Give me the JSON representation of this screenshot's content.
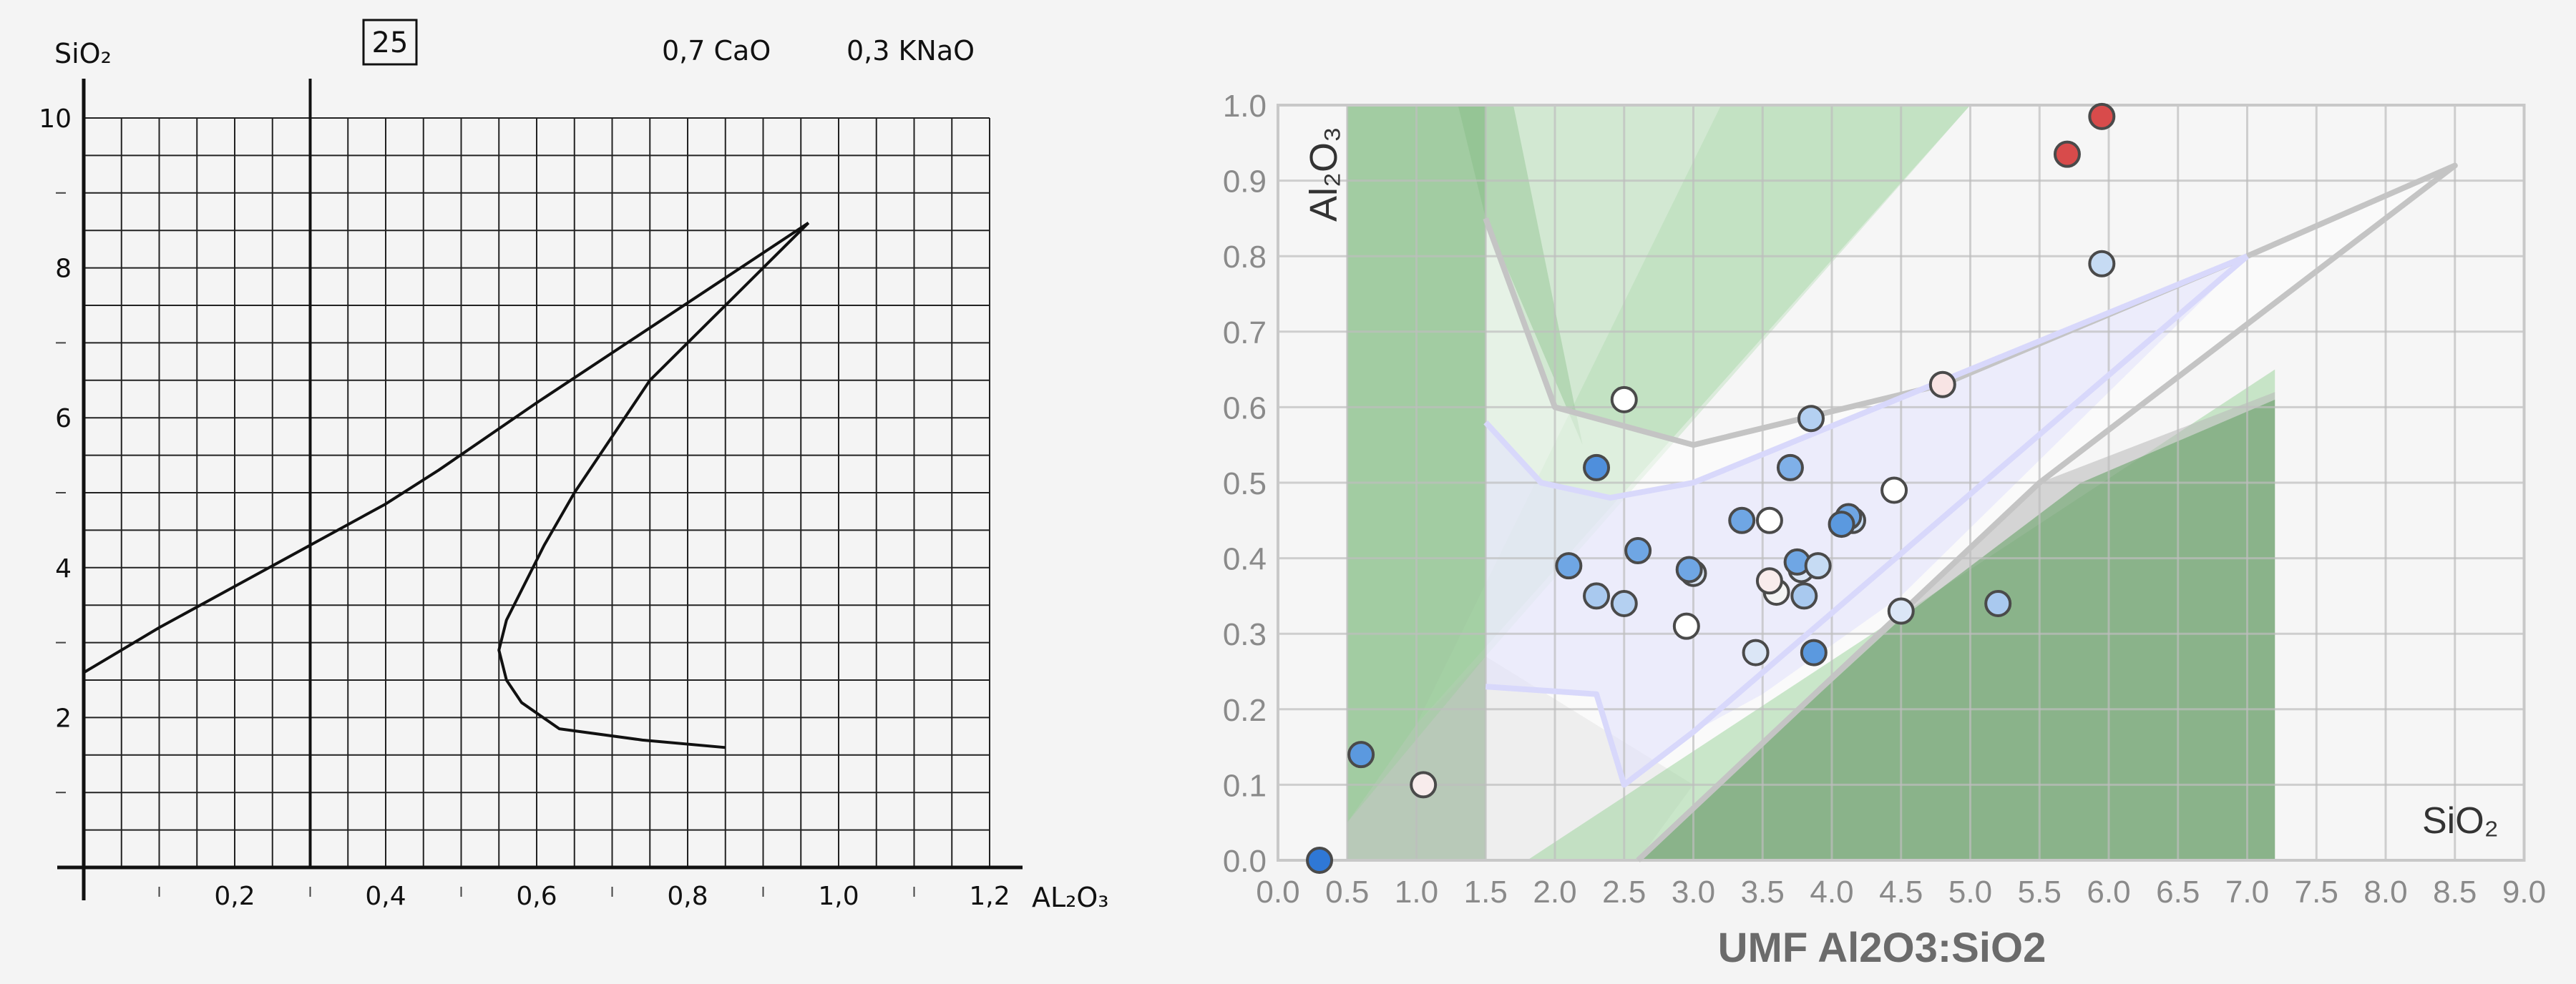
{
  "chart_data": [
    {
      "type": "line",
      "panel": "left",
      "title": "",
      "box_label": "25",
      "annotations": [
        "0,7 CaO",
        "0,3 KNaO"
      ],
      "xlabel": "AL₂O₃",
      "ylabel": "SiO₂",
      "xlim": [
        0,
        1.2
      ],
      "ylim": [
        0,
        10
      ],
      "x_ticks": [
        "0,2",
        "0,4",
        "0,6",
        "0,8",
        "1,0",
        "1,2"
      ],
      "x_tick_values": [
        0.2,
        0.4,
        0.6,
        0.8,
        1.0,
        1.2
      ],
      "y_ticks": [
        "2",
        "4",
        "6",
        "8",
        "10"
      ],
      "y_tick_values": [
        2,
        4,
        6,
        8,
        10
      ],
      "grid": true,
      "reference_line_x": 0.3,
      "series": [
        {
          "x": [
            0,
            0.1,
            0.2,
            0.3,
            0.4,
            0.47,
            0.6,
            0.75,
            0.96
          ],
          "y": [
            2.6,
            3.2,
            3.75,
            4.3,
            4.85,
            5.3,
            6.2,
            7.2,
            8.6
          ]
        },
        {
          "x": [
            0.96,
            0.9,
            0.83,
            0.75,
            0.69,
            0.65,
            0.61,
            0.58,
            0.56,
            0.55,
            0.56,
            0.58,
            0.63,
            0.74,
            0.85
          ],
          "y": [
            8.6,
            8.0,
            7.3,
            6.5,
            5.6,
            5.0,
            4.3,
            3.7,
            3.3,
            2.9,
            2.5,
            2.2,
            1.85,
            1.7,
            1.6
          ]
        }
      ]
    },
    {
      "type": "scatter",
      "panel": "right",
      "title": "",
      "xlabel": "UMF Al2O3:SiO2",
      "inner_labels": {
        "y": "Al₂O₃",
        "x": "SiO₂"
      },
      "xlim": [
        0,
        9
      ],
      "ylim": [
        0,
        1.0
      ],
      "x_ticks": [
        "0.0",
        "0.5",
        "1.0",
        "1.5",
        "2.0",
        "2.5",
        "3.0",
        "3.5",
        "4.0",
        "4.5",
        "5.0",
        "5.5",
        "6.0",
        "6.5",
        "7.0",
        "7.5",
        "8.0",
        "8.5",
        "9.0"
      ],
      "y_ticks": [
        "0.0",
        "0.1",
        "0.2",
        "0.3",
        "0.4",
        "0.5",
        "0.6",
        "0.7",
        "0.8",
        "0.9",
        "1.0"
      ],
      "grid": true,
      "regions": [
        {
          "fill": "#6fa86f",
          "opacity": 0.55,
          "points": [
            [
              0.5,
              0
            ],
            [
              1.5,
              0
            ],
            [
              1.5,
              1.0
            ],
            [
              0.5,
              1.0
            ]
          ]
        },
        {
          "fill": "#8fcf8f",
          "opacity": 0.35,
          "points": [
            [
              0.5,
              0.05
            ],
            [
              1.0,
              0.18
            ],
            [
              5.0,
              1.0
            ],
            [
              0.5,
              1.0
            ]
          ]
        },
        {
          "fill": "#a8d8a8",
          "opacity": 0.35,
          "points": [
            [
              1.0,
              0.18
            ],
            [
              1.5,
              0.27
            ],
            [
              5.0,
              1.0
            ],
            [
              3.2,
              1.0
            ]
          ]
        },
        {
          "fill": "#7fb87f",
          "opacity": 0.35,
          "points": [
            [
              1.3,
              1.0
            ],
            [
              1.7,
              1.0
            ],
            [
              2.2,
              0.55
            ],
            [
              1.5,
              0.85
            ]
          ]
        },
        {
          "fill": "#c8c8c8",
          "opacity": 0.45,
          "points": [
            [
              0.5,
              0
            ],
            [
              2.6,
              0
            ],
            [
              3.0,
              0.1
            ],
            [
              1.5,
              0.27
            ],
            [
              0.5,
              0.05
            ]
          ]
        },
        {
          "fill": "#ffffff",
          "opacity": 0.45,
          "points": [
            [
              1.5,
              0.85
            ],
            [
              2.0,
              0.6
            ],
            [
              3.0,
              0.55
            ],
            [
              4.8,
              0.63
            ],
            [
              7.0,
              0.8
            ],
            [
              8.5,
              0.92
            ],
            [
              5.5,
              0.5
            ],
            [
              2.6,
              0
            ],
            [
              1.5,
              0
            ]
          ]
        },
        {
          "fill": "#8fcf8f",
          "opacity": 0.45,
          "points": [
            [
              1.8,
              0
            ],
            [
              7.2,
              0
            ],
            [
              7.2,
              0.65
            ]
          ]
        },
        {
          "fill": "#b8b8b8",
          "opacity": 0.55,
          "points": [
            [
              2.6,
              0
            ],
            [
              5.5,
              0.5
            ],
            [
              7.2,
              0.62
            ],
            [
              7.2,
              0
            ]
          ]
        },
        {
          "fill": "#5f9f5f",
          "opacity": 0.55,
          "points": [
            [
              2.6,
              0
            ],
            [
              4.5,
              0.32
            ],
            [
              5.8,
              0.5
            ],
            [
              7.2,
              0.61
            ],
            [
              7.2,
              0
            ]
          ]
        },
        {
          "fill": "#e2e2fb",
          "opacity": 0.6,
          "points": [
            [
              1.5,
              0.58
            ],
            [
              1.9,
              0.5
            ],
            [
              2.4,
              0.48
            ],
            [
              3.0,
              0.5
            ],
            [
              5.0,
              0.65
            ],
            [
              7.0,
              0.8
            ],
            [
              4.5,
              0.35
            ],
            [
              3.5,
              0.22
            ],
            [
              3.0,
              0.17
            ],
            [
              2.5,
              0.1
            ],
            [
              2.3,
              0.22
            ],
            [
              1.5,
              0.23
            ]
          ]
        }
      ],
      "boundary_lines": [
        {
          "color": "#c4c4c4",
          "points": [
            [
              1.5,
              0.85
            ],
            [
              2.0,
              0.6
            ],
            [
              3.0,
              0.55
            ],
            [
              4.8,
              0.63
            ],
            [
              7.0,
              0.8
            ],
            [
              8.5,
              0.92
            ],
            [
              5.5,
              0.5
            ],
            [
              2.6,
              0
            ]
          ]
        },
        {
          "color": "#d8d8fb",
          "points": [
            [
              1.5,
              0.58
            ],
            [
              1.9,
              0.5
            ],
            [
              2.4,
              0.48
            ],
            [
              3.0,
              0.5
            ],
            [
              5.0,
              0.65
            ],
            [
              7.0,
              0.8
            ]
          ]
        },
        {
          "color": "#d8d8fb",
          "points": [
            [
              1.5,
              0.23
            ],
            [
              2.3,
              0.22
            ],
            [
              2.5,
              0.1
            ],
            [
              3.0,
              0.17
            ],
            [
              7.0,
              0.8
            ]
          ]
        }
      ],
      "points": [
        {
          "x": 0.3,
          "y": 0.0,
          "color": "#2f78d6"
        },
        {
          "x": 0.6,
          "y": 0.14,
          "color": "#5b99df"
        },
        {
          "x": 1.05,
          "y": 0.1,
          "color": "#f8ecec"
        },
        {
          "x": 2.1,
          "y": 0.39,
          "color": "#6fa6e4"
        },
        {
          "x": 2.3,
          "y": 0.35,
          "color": "#a9c9ef"
        },
        {
          "x": 2.3,
          "y": 0.52,
          "color": "#4f8fdc"
        },
        {
          "x": 2.5,
          "y": 0.34,
          "color": "#b4d0f1"
        },
        {
          "x": 2.5,
          "y": 0.61,
          "color": "#ffffff"
        },
        {
          "x": 2.6,
          "y": 0.41,
          "color": "#6fa6e4"
        },
        {
          "x": 3.0,
          "y": 0.38,
          "color": "#dbe6f6"
        },
        {
          "x": 2.97,
          "y": 0.385,
          "color": "#6fa6e4"
        },
        {
          "x": 2.95,
          "y": 0.31,
          "color": "#ffffff"
        },
        {
          "x": 3.35,
          "y": 0.45,
          "color": "#6fa6e4"
        },
        {
          "x": 3.55,
          "y": 0.45,
          "color": "#ffffff"
        },
        {
          "x": 3.45,
          "y": 0.275,
          "color": "#dbe6f6"
        },
        {
          "x": 3.6,
          "y": 0.355,
          "color": "#f4f4f4"
        },
        {
          "x": 3.55,
          "y": 0.37,
          "color": "#f8ecec"
        },
        {
          "x": 3.7,
          "y": 0.52,
          "color": "#7fb0e8"
        },
        {
          "x": 3.78,
          "y": 0.385,
          "color": "#dbe6f6"
        },
        {
          "x": 3.75,
          "y": 0.395,
          "color": "#6fa6e4"
        },
        {
          "x": 3.8,
          "y": 0.35,
          "color": "#a9c9ef"
        },
        {
          "x": 3.9,
          "y": 0.39,
          "color": "#c6dbf3"
        },
        {
          "x": 3.85,
          "y": 0.585,
          "color": "#b4d0f1"
        },
        {
          "x": 3.87,
          "y": 0.275,
          "color": "#5b99df"
        },
        {
          "x": 4.15,
          "y": 0.45,
          "color": "#c6dbf3"
        },
        {
          "x": 4.12,
          "y": 0.455,
          "color": "#6fa6e4"
        },
        {
          "x": 4.07,
          "y": 0.445,
          "color": "#5b99df"
        },
        {
          "x": 4.45,
          "y": 0.49,
          "color": "#ffffff"
        },
        {
          "x": 4.5,
          "y": 0.33,
          "color": "#dbe6f6"
        },
        {
          "x": 4.8,
          "y": 0.63,
          "color": "#f8e4e4"
        },
        {
          "x": 5.2,
          "y": 0.34,
          "color": "#a9c9ef"
        },
        {
          "x": 5.7,
          "y": 0.935,
          "color": "#d84b4b"
        },
        {
          "x": 5.95,
          "y": 0.985,
          "color": "#d84b4b"
        },
        {
          "x": 5.95,
          "y": 0.79,
          "color": "#c6dbf3"
        }
      ]
    }
  ]
}
